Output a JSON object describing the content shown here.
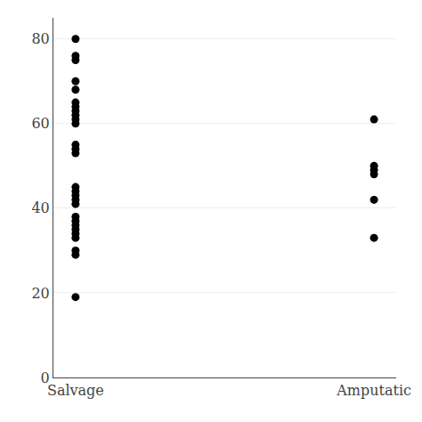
{
  "chart_data": {
    "type": "strip",
    "categories": [
      "Salvage",
      "Amputatic"
    ],
    "values": [
      [
        80,
        76,
        75,
        70,
        68,
        65,
        64,
        63,
        62,
        61,
        60,
        55,
        54,
        53,
        45,
        44,
        43,
        42,
        41,
        38,
        37,
        36,
        35,
        34,
        33,
        30,
        29,
        19
      ],
      [
        61,
        50,
        49,
        48,
        42,
        33
      ]
    ],
    "color": "#000000",
    "marker": "circle",
    "ylim": [
      0,
      85
    ],
    "yticks": [
      0,
      20,
      40,
      60,
      80
    ],
    "grid": true
  }
}
